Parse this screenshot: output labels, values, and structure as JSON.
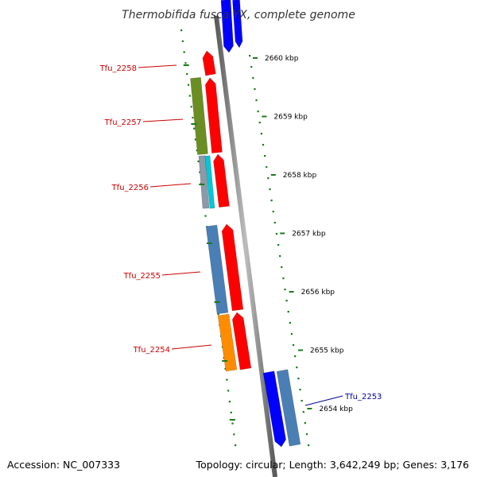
{
  "title": "Thermobifida fusca YX, complete genome",
  "footer": {
    "accession": "Accession: NC_007333",
    "summary": "Topology: circular; Length: 3,642,249 bp; Genes: 3,176"
  },
  "ticks": [
    {
      "label": "2660 kbp",
      "kbp": 2660
    },
    {
      "label": "2659 kbp",
      "kbp": 2659
    },
    {
      "label": "2658 kbp",
      "kbp": 2658
    },
    {
      "label": "2657 kbp",
      "kbp": 2657
    },
    {
      "label": "2656 kbp",
      "kbp": 2656
    },
    {
      "label": "2655 kbp",
      "kbp": 2655
    },
    {
      "label": "2654 kbp",
      "kbp": 2654
    }
  ],
  "gene_labels": [
    {
      "name": "Tfu_2258",
      "side": "left"
    },
    {
      "name": "Tfu_2257",
      "side": "left"
    },
    {
      "name": "Tfu_2256",
      "side": "left"
    },
    {
      "name": "Tfu_2255",
      "side": "left"
    },
    {
      "name": "Tfu_2254",
      "side": "left"
    },
    {
      "name": "Tfu_2253",
      "side": "right"
    }
  ],
  "colors": {
    "backbone": "#888888",
    "ticks": "#1a7a1a",
    "left_label": "#cc0000",
    "right_label": "#000099",
    "red_feature": "#ff0000",
    "blue_feature": "#0000ff",
    "steel_feature": "#4a7fb5",
    "olive_feature": "#6b8e23",
    "orange_feature": "#ff8c00",
    "cyan_feature": "#00c8d8",
    "grey_feature": "#8c9aa8"
  }
}
